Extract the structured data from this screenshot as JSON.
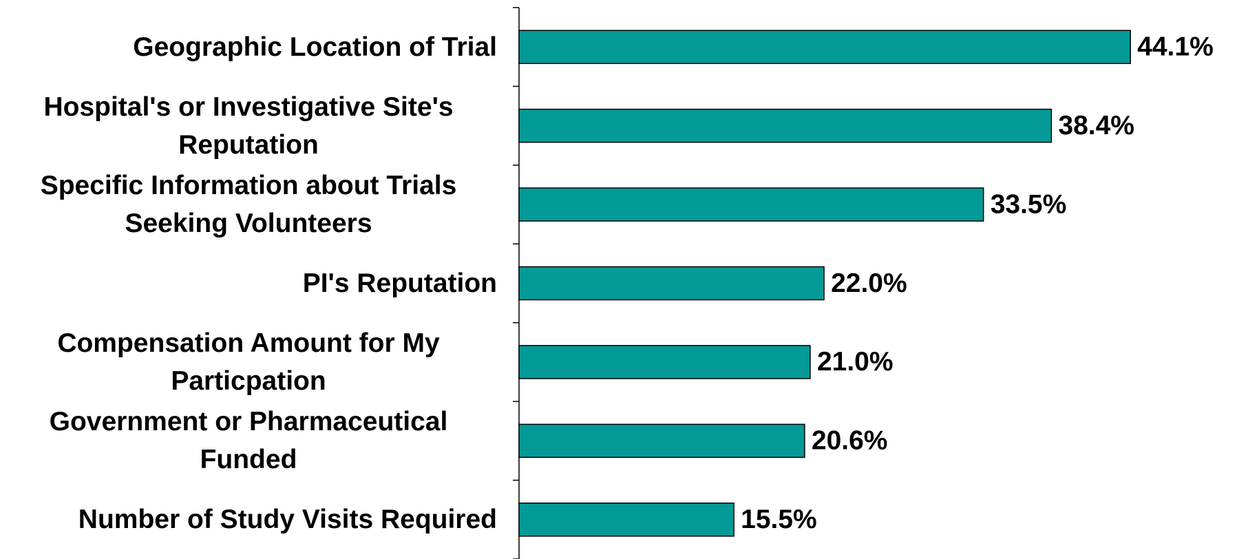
{
  "chart_data": {
    "type": "bar",
    "orientation": "horizontal",
    "categories": [
      "Geographic Location of Trial",
      "Hospital's or Investigative Site's Reputation",
      "Specific Information about Trials Seeking Volunteers",
      "PI's Reputation",
      "Compensation Amount for My Particpation",
      "Government or Pharmaceutical Funded",
      "Number of Study Visits Required"
    ],
    "values": [
      44.1,
      38.4,
      33.5,
      22.0,
      21.0,
      20.6,
      15.5
    ],
    "value_labels": [
      "44.1%",
      "38.4%",
      "33.5%",
      "22.0%",
      "21.0%",
      "20.6%",
      "15.5%"
    ],
    "color": "#039a97",
    "xlim": [
      0,
      50
    ]
  }
}
